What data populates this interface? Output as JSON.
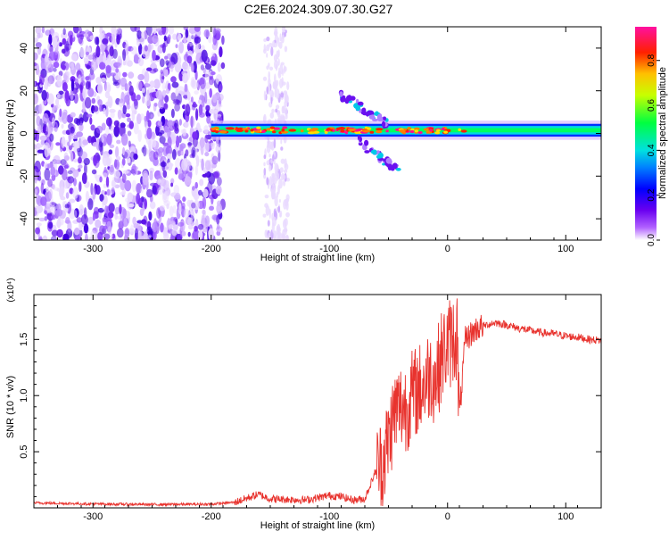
{
  "title": "C2E6.2024.309.07.30.G27",
  "colors": {
    "snr_line": "#e8332e",
    "background": "#ffffff",
    "axis": "#000000"
  },
  "chart_data": [
    {
      "type": "heatmap",
      "name": "spectrogram",
      "xlabel": "Height of straight line (km)",
      "ylabel": "Frequency (Hz)",
      "xlim": [
        -350,
        130
      ],
      "ylim": [
        -50,
        50
      ],
      "xticks": [
        -300,
        -200,
        -100,
        0,
        100
      ],
      "yticks": [
        -40,
        -20,
        0,
        20,
        40
      ],
      "colorbar": {
        "label": "Normalized spectral amplitude",
        "range": [
          0,
          0.95
        ],
        "ticks": [
          0.0,
          0.2,
          0.4,
          0.6,
          0.8
        ],
        "colormap": "rainbow (white-purple-blue-cyan-green-yellow-red-magenta)"
      },
      "regions": [
        {
          "x_range": [
            -350,
            -190
          ],
          "frequency_range": [
            -50,
            50
          ],
          "amplitude": "0.1-0.3 (noise)"
        },
        {
          "x_range": [
            -155,
            -135
          ],
          "frequency_range": [
            -50,
            50
          ],
          "amplitude": "0.05-0.1 (faint noise)"
        },
        {
          "x_range": [
            -200,
            130
          ],
          "frequency_center": 1.5,
          "frequency_halfwidth": 3,
          "amplitude": "0.4-0.95 (signal band)"
        },
        {
          "x_range": [
            -90,
            -60
          ],
          "frequency_range": [
            5,
            20
          ],
          "amplitude": "0.2-0.3 (side feature)"
        },
        {
          "x_range": [
            -80,
            -40
          ],
          "frequency_range": [
            -25,
            -5
          ],
          "amplitude": "0.2-0.3 (side feature)"
        }
      ]
    },
    {
      "type": "line",
      "name": "snr",
      "xlabel": "Height of straight line (km)",
      "ylabel": "SNR (10 * v/v)",
      "y_multiplier": "(x10⁴)",
      "xlim": [
        -350,
        130
      ],
      "ylim": [
        0,
        19000
      ],
      "xticks": [
        -300,
        -200,
        -100,
        0,
        100
      ],
      "yticks": [
        0.5,
        1.0,
        1.5
      ],
      "ytick_labels": [
        "0.5",
        "1.0",
        "1.5"
      ],
      "series": [
        {
          "x": [
            -350,
            -300,
            -250,
            -200,
            -180,
            -160,
            -150,
            -120,
            -100,
            -90,
            -80,
            -70,
            -60,
            -55,
            -50,
            -45,
            -40,
            -35,
            -30,
            -25,
            -20,
            -15,
            -10,
            -5,
            0,
            5,
            8,
            10,
            15,
            20,
            25,
            30,
            40,
            50,
            60,
            70,
            80,
            90,
            100,
            110,
            120,
            130
          ],
          "y": [
            450,
            350,
            300,
            330,
            500,
            1200,
            800,
            700,
            1100,
            1000,
            700,
            800,
            3500,
            4000,
            6000,
            8500,
            9000,
            9000,
            10000,
            10500,
            11000,
            12000,
            11500,
            13500,
            14500,
            15000,
            15500,
            8000,
            15000,
            15500,
            16000,
            16200,
            16500,
            16300,
            16000,
            15800,
            15600,
            15500,
            15300,
            15200,
            15000,
            14900
          ]
        }
      ]
    }
  ]
}
